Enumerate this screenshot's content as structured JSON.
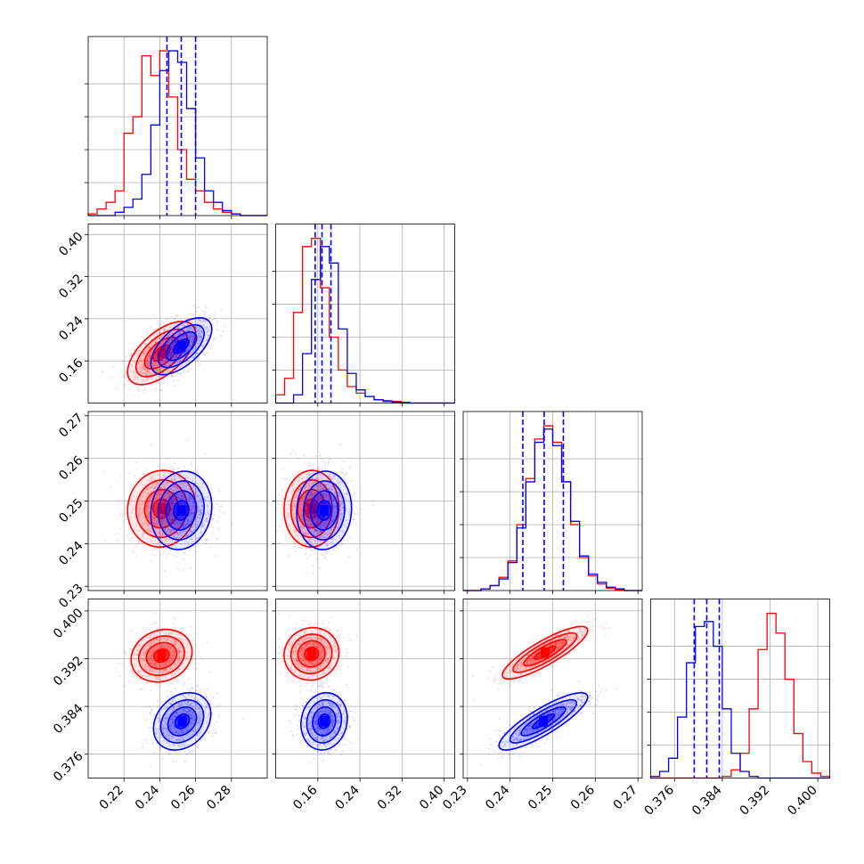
{
  "chart_data": {
    "type": "corner",
    "title": "",
    "grid": true,
    "legend": "none",
    "colors": {
      "series_a": "#ff0000",
      "series_b": "#0000ff"
    },
    "parameters": [
      {
        "index": 0,
        "range": [
          0.2,
          0.3
        ],
        "ticks": [
          0.22,
          0.24,
          0.26,
          0.28
        ],
        "tick_labels": [
          "0.22",
          "0.24",
          "0.26",
          "0.28"
        ],
        "quantiles_series_b": [
          0.244,
          0.252,
          0.26
        ],
        "hist_series_a": [
          0.01,
          0.04,
          0.08,
          0.15,
          0.5,
          0.6,
          0.97,
          0.85,
          1.0,
          0.72,
          0.4,
          0.22,
          0.15,
          0.08,
          0.04,
          0.02,
          0.01,
          0.0,
          0.0,
          0.0
        ],
        "hist_series_b": [
          0.0,
          0.0,
          0.0,
          0.02,
          0.05,
          0.1,
          0.25,
          0.55,
          0.88,
          1.0,
          0.93,
          0.65,
          0.35,
          0.15,
          0.08,
          0.03,
          0.01,
          0.0,
          0.0,
          0.0
        ]
      },
      {
        "index": 1,
        "range": [
          0.08,
          0.42
        ],
        "ticks": [
          0.16,
          0.24,
          0.32,
          0.4
        ],
        "tick_labels": [
          "0.16",
          "0.24",
          "0.32",
          "0.40"
        ],
        "quantiles_series_b": [
          0.155,
          0.168,
          0.185
        ],
        "hist_series_a": [
          0.05,
          0.15,
          0.55,
          0.95,
          1.0,
          0.7,
          0.4,
          0.2,
          0.1,
          0.06,
          0.04,
          0.02,
          0.015,
          0.01,
          0.005,
          0.0,
          0.0,
          0.0,
          0.0,
          0.0
        ],
        "hist_series_b": [
          0.0,
          0.0,
          0.05,
          0.3,
          0.75,
          0.95,
          0.85,
          0.45,
          0.18,
          0.08,
          0.04,
          0.02,
          0.01,
          0.005,
          0.0,
          0.0,
          0.0,
          0.0,
          0.0,
          0.0
        ]
      },
      {
        "index": 2,
        "range": [
          0.229,
          0.271
        ],
        "ticks": [
          0.23,
          0.24,
          0.25,
          0.26,
          0.27
        ],
        "tick_labels": [
          "0.23",
          "0.24",
          "0.25",
          "0.26",
          "0.27"
        ],
        "quantiles_series_b": [
          0.243,
          0.248,
          0.2525
        ],
        "hist_series_a": [
          0.0,
          0.0,
          0.01,
          0.03,
          0.08,
          0.18,
          0.4,
          0.68,
          0.92,
          1.0,
          0.9,
          0.66,
          0.4,
          0.2,
          0.09,
          0.04,
          0.015,
          0.005,
          0.0,
          0.0
        ],
        "hist_series_b": [
          0.0,
          0.0,
          0.01,
          0.03,
          0.07,
          0.17,
          0.38,
          0.66,
          0.9,
          0.98,
          0.88,
          0.66,
          0.42,
          0.21,
          0.1,
          0.05,
          0.02,
          0.01,
          0.0,
          0.0
        ]
      },
      {
        "index": 3,
        "range": [
          0.372,
          0.402
        ],
        "ticks": [
          0.376,
          0.384,
          0.392,
          0.4
        ],
        "tick_labels": [
          "0.376",
          "0.384",
          "0.392",
          "0.400"
        ],
        "quantiles_series_b": [
          0.3793,
          0.3814,
          0.3835
        ],
        "hist_series_a": [
          0.0,
          0.0,
          0.0,
          0.0,
          0.0,
          0.0,
          0.0,
          0.0,
          0.01,
          0.05,
          0.15,
          0.42,
          0.78,
          1.0,
          0.88,
          0.6,
          0.27,
          0.1,
          0.03,
          0.01
        ],
        "hist_series_b": [
          0.01,
          0.04,
          0.12,
          0.37,
          0.7,
          0.92,
          0.95,
          0.8,
          0.42,
          0.15,
          0.04,
          0.01,
          0.0,
          0.0,
          0.0,
          0.0,
          0.0,
          0.0,
          0.0,
          0.0
        ]
      }
    ],
    "pairs": [
      {
        "x": 0,
        "y": 1,
        "series_a": {
          "mean": [
            0.241,
            0.175
          ],
          "sd": [
            0.0095,
            0.03
          ],
          "rho": 0.6
        },
        "series_b": {
          "mean": [
            0.252,
            0.188
          ],
          "sd": [
            0.0085,
            0.027
          ],
          "rho": 0.6
        }
      },
      {
        "x": 0,
        "y": 2,
        "series_a": {
          "mean": [
            0.241,
            0.2482
          ],
          "sd": [
            0.0095,
            0.0045
          ],
          "rho": 0.05
        },
        "series_b": {
          "mean": [
            0.252,
            0.2478
          ],
          "sd": [
            0.0085,
            0.0046
          ],
          "rho": 0.1
        }
      },
      {
        "x": 0,
        "y": 3,
        "series_a": {
          "mean": [
            0.241,
            0.3925
          ],
          "sd": [
            0.0085,
            0.0022
          ],
          "rho": 0.15
        },
        "series_b": {
          "mean": [
            0.2525,
            0.3815
          ],
          "sd": [
            0.008,
            0.0024
          ],
          "rho": 0.25
        }
      },
      {
        "x": 1,
        "y": 2,
        "series_a": {
          "mean": [
            0.148,
            0.2482
          ],
          "sd": [
            0.026,
            0.0045
          ],
          "rho": 0.02
        },
        "series_b": {
          "mean": [
            0.172,
            0.2478
          ],
          "sd": [
            0.026,
            0.0046
          ],
          "rho": 0.05
        }
      },
      {
        "x": 1,
        "y": 3,
        "series_a": {
          "mean": [
            0.148,
            0.3928
          ],
          "sd": [
            0.026,
            0.0022
          ],
          "rho": 0.05
        },
        "series_b": {
          "mean": [
            0.172,
            0.3815
          ],
          "sd": [
            0.022,
            0.0024
          ],
          "rho": 0.1
        }
      },
      {
        "x": 2,
        "y": 3,
        "series_a": {
          "mean": [
            0.2482,
            0.393
          ],
          "sd": [
            0.005,
            0.0022
          ],
          "rho": 0.85
        },
        "series_b": {
          "mean": [
            0.2478,
            0.3815
          ],
          "sd": [
            0.0052,
            0.0024
          ],
          "rho": 0.85
        }
      }
    ]
  }
}
